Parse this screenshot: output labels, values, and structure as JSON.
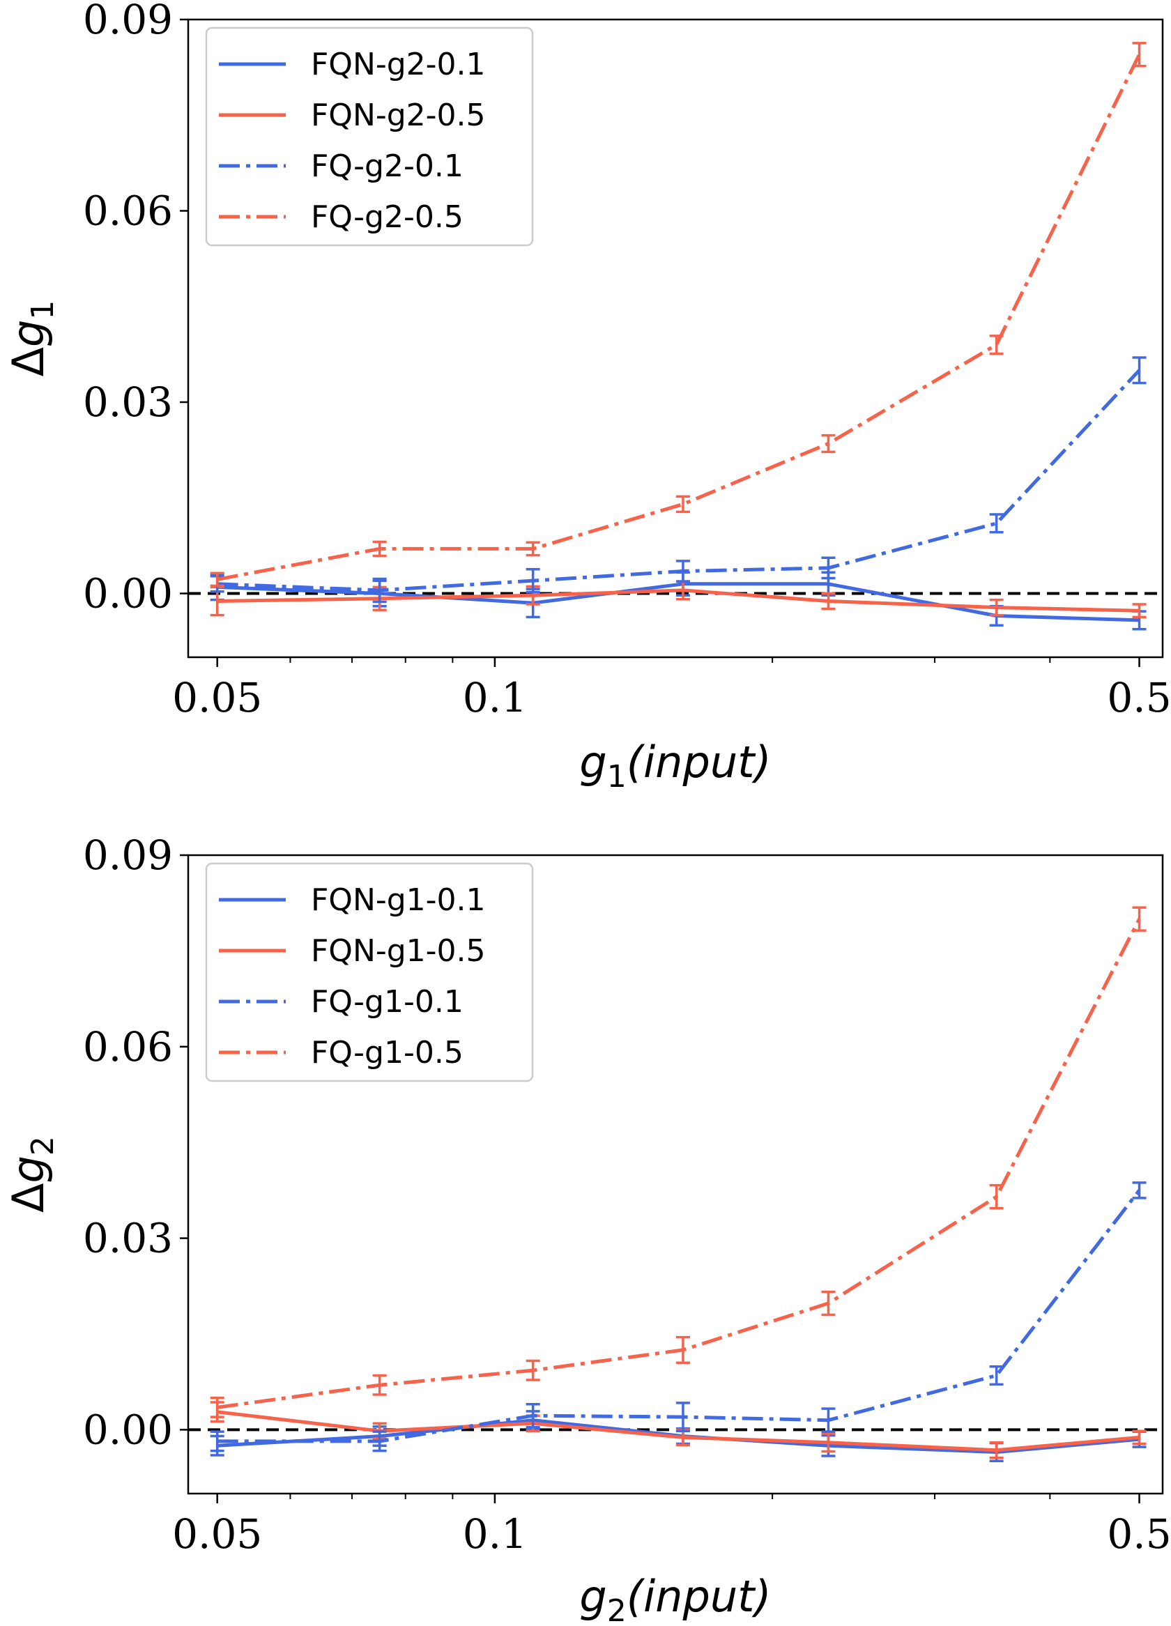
{
  "colors": {
    "blue": "#4169e1",
    "red": "#f7634a",
    "zero_line": "#000000"
  },
  "chart_data": [
    {
      "type": "line",
      "x_scale": "log",
      "x": [
        0.05,
        0.075,
        0.11,
        0.16,
        0.23,
        0.35,
        0.5
      ],
      "xlim": [
        0.0465,
        0.53
      ],
      "ylim": [
        -0.01,
        0.09
      ],
      "xticks": [
        0.05,
        0.1,
        0.5
      ],
      "xtick_labels": [
        "0.05",
        "0.1",
        "0.5"
      ],
      "yticks": [
        0.0,
        0.03,
        0.06,
        0.09
      ],
      "ytick_labels": [
        "0.00",
        "0.03",
        "0.06",
        "0.09"
      ],
      "xlabel": {
        "main": "g",
        "sub": "1",
        "rest": "(input)"
      },
      "ylabel": {
        "prefix": "Δ",
        "main": "g",
        "sub": "1"
      },
      "zero_line": true,
      "legend_position": "top-left",
      "series": [
        {
          "name": "FQN-g2-0.1",
          "color": "#4169e1",
          "style": "solid",
          "values": [
            0.001,
            0.0,
            -0.0015,
            0.0015,
            0.0015,
            -0.0035,
            -0.0042
          ],
          "errors": [
            0.002,
            0.002,
            0.0022,
            0.0018,
            0.0018,
            0.0015,
            0.0014
          ]
        },
        {
          "name": "FQN-g2-0.5",
          "color": "#f7634a",
          "style": "solid",
          "values": [
            -0.0012,
            -0.0008,
            -0.0003,
            0.0005,
            -0.0012,
            -0.0022,
            -0.0027
          ],
          "errors": [
            0.0022,
            0.0018,
            0.0014,
            0.0014,
            0.0012,
            0.0012,
            0.001
          ]
        },
        {
          "name": "FQ-g2-0.1",
          "color": "#4169e1",
          "style": "dashdot",
          "values": [
            0.0015,
            0.0005,
            0.002,
            0.0035,
            0.004,
            0.011,
            0.035
          ],
          "errors": [
            0.0012,
            0.0018,
            0.0018,
            0.0016,
            0.0016,
            0.0014,
            0.002
          ]
        },
        {
          "name": "FQ-g2-0.5",
          "color": "#f7634a",
          "style": "dashdot",
          "values": [
            0.0022,
            0.007,
            0.007,
            0.014,
            0.0235,
            0.039,
            0.0845
          ],
          "errors": [
            0.001,
            0.0011,
            0.001,
            0.0012,
            0.0013,
            0.0014,
            0.0018
          ]
        }
      ]
    },
    {
      "type": "line",
      "x_scale": "log",
      "x": [
        0.05,
        0.075,
        0.11,
        0.16,
        0.23,
        0.35,
        0.5
      ],
      "xlim": [
        0.0465,
        0.53
      ],
      "ylim": [
        -0.01,
        0.09
      ],
      "xticks": [
        0.05,
        0.1,
        0.5
      ],
      "xtick_labels": [
        "0.05",
        "0.1",
        "0.5"
      ],
      "yticks": [
        0.0,
        0.03,
        0.06,
        0.09
      ],
      "ytick_labels": [
        "0.00",
        "0.03",
        "0.06",
        "0.09"
      ],
      "xlabel": {
        "main": "g",
        "sub": "2",
        "rest": "(input)"
      },
      "ylabel": {
        "prefix": "Δ",
        "main": "g",
        "sub": "2"
      },
      "zero_line": true,
      "legend_position": "top-left",
      "series": [
        {
          "name": "FQN-g1-0.1",
          "color": "#4169e1",
          "style": "solid",
          "values": [
            -0.0025,
            -0.001,
            0.0015,
            -0.001,
            -0.0025,
            -0.0035,
            -0.0015
          ],
          "errors": [
            0.0015,
            0.0015,
            0.0014,
            0.0012,
            0.0016,
            0.0014,
            0.0012
          ]
        },
        {
          "name": "FQN-g1-0.5",
          "color": "#f7634a",
          "style": "solid",
          "values": [
            0.0028,
            -0.0002,
            0.001,
            -0.0012,
            -0.002,
            -0.0032,
            -0.0012
          ],
          "errors": [
            0.0015,
            0.0012,
            0.0012,
            0.0012,
            0.0014,
            0.0012,
            0.001
          ]
        },
        {
          "name": "FQ-g1-0.1",
          "color": "#4169e1",
          "style": "dashdot",
          "values": [
            -0.0018,
            -0.0018,
            0.0022,
            0.002,
            0.0015,
            0.0085,
            0.0375
          ],
          "errors": [
            0.0015,
            0.0015,
            0.0018,
            0.0022,
            0.0018,
            0.0014,
            0.0012
          ]
        },
        {
          "name": "FQ-g1-0.5",
          "color": "#f7634a",
          "style": "dashdot",
          "values": [
            0.0035,
            0.007,
            0.0093,
            0.0125,
            0.0198,
            0.0365,
            0.08
          ],
          "errors": [
            0.0015,
            0.0015,
            0.0015,
            0.002,
            0.0018,
            0.0018,
            0.0018
          ]
        }
      ]
    }
  ]
}
